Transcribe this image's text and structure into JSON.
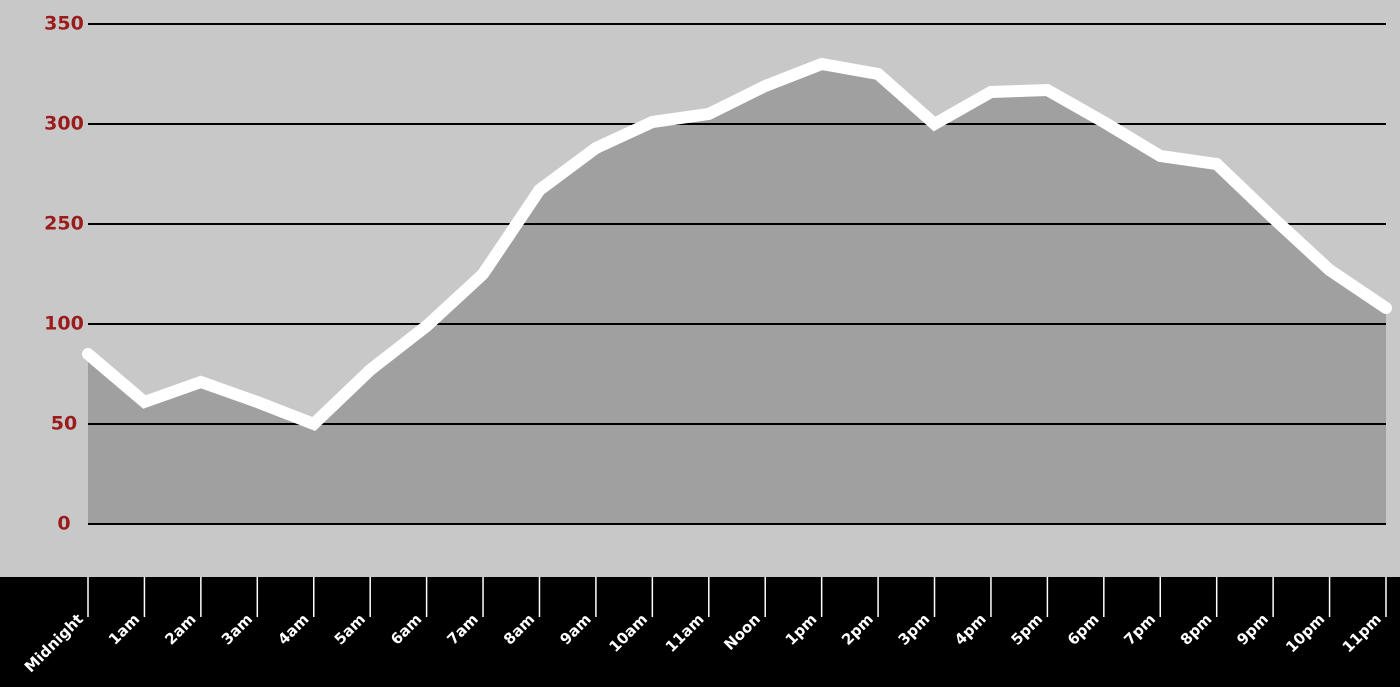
{
  "chart_data": {
    "type": "area",
    "categories": [
      "Midnight",
      "1am",
      "2am",
      "3am",
      "4am",
      "5am",
      "6am",
      "7am",
      "8am",
      "9am",
      "10am",
      "11am",
      "Noon",
      "1pm",
      "2pm",
      "3pm",
      "4pm",
      "5pm",
      "6pm",
      "7pm",
      "8pm",
      "9pm",
      "10pm",
      "11pm"
    ],
    "values": [
      85,
      61,
      71,
      61,
      50,
      77,
      99,
      175,
      267,
      288,
      301,
      305,
      319,
      330,
      325,
      300,
      316,
      317,
      301,
      284,
      280,
      253,
      181,
      124
    ],
    "yticks": [
      0,
      50,
      100,
      250,
      300,
      350
    ],
    "ylim": [
      0,
      350
    ],
    "grid": true,
    "line_color": "#ffffff",
    "fill_color": "#a0a0a0"
  }
}
